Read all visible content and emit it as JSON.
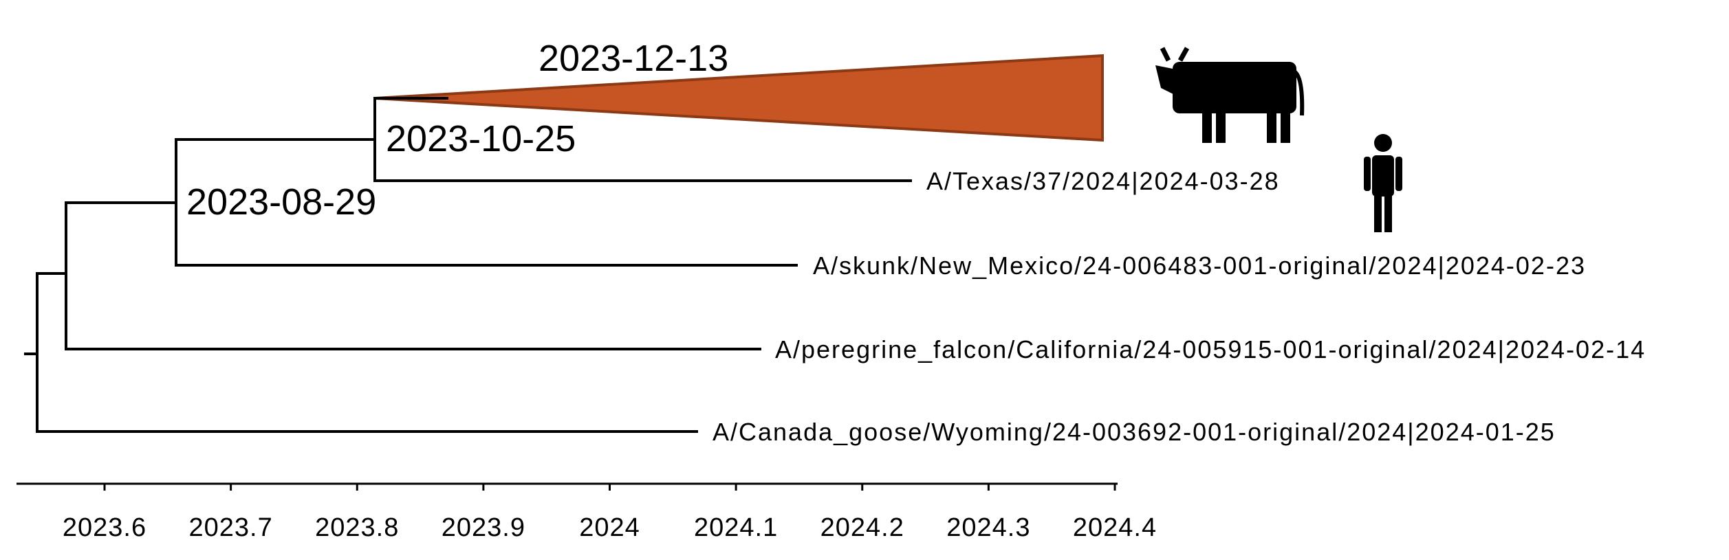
{
  "chart_data": {
    "type": "phylogenetic-tree",
    "x_axis": {
      "ticks": [
        2023.6,
        2023.7,
        2023.8,
        2023.9,
        2024,
        2024.1,
        2024.2,
        2024.3,
        2024.4
      ],
      "tick_labels": [
        "2023.6",
        "2023.7",
        "2023.8",
        "2023.9",
        "2024",
        "2024.1",
        "2024.2",
        "2024.3",
        "2024.4"
      ],
      "range": [
        2023.53,
        2024.4
      ]
    },
    "internal_nodes": [
      {
        "date": 2023.545
      },
      {
        "date": 2023.567
      },
      {
        "date": 2023.656,
        "label": "2023-08-29"
      },
      {
        "date": 2023.814,
        "label": "2023-10-25"
      },
      {
        "date": 2023.95,
        "label": "2023-12-13"
      }
    ],
    "tips": [
      {
        "label": "A/Texas/37/2024|2024-03-28",
        "date": 2024.24
      },
      {
        "label": "A/skunk/New_Mexico/24-006483-001-original/2024|2024-02-23",
        "date": 2024.149
      },
      {
        "label": "A/peregrine_falcon/California/24-005915-001-original/2024|2024-02-14",
        "date": 2024.121
      },
      {
        "label": "A/Canada_goose/Wyoming/24-003692-001-original/2024|2024-01-25",
        "date": 2024.07
      }
    ],
    "collapsed_clade": {
      "start_date": 2023.814,
      "end_date": 2024.39,
      "color": "#c75423",
      "stroke_color": "#8b3a15",
      "host_icon": "cow-icon"
    },
    "human_case_icon": "person-icon"
  }
}
